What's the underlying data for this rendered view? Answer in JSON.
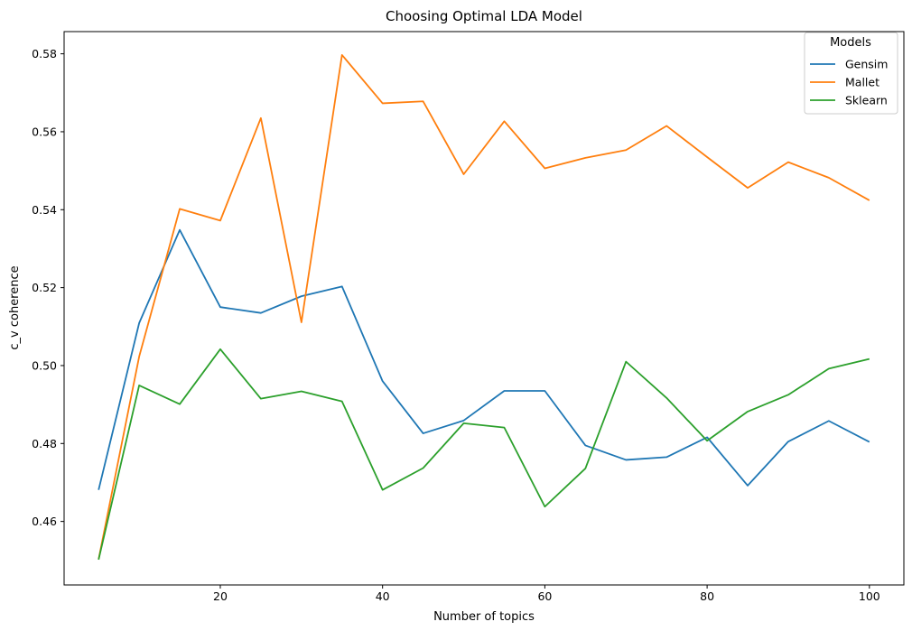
{
  "chart_data": {
    "type": "line",
    "title": "Choosing Optimal LDA Model",
    "xlabel": "Number of topics",
    "ylabel": "c_v coherence",
    "xlim": [
      0.75,
      104.25
    ],
    "ylim": [
      0.4437,
      0.5857
    ],
    "xticks": [
      20,
      40,
      60,
      80,
      100
    ],
    "xtick_labels": [
      "20",
      "40",
      "60",
      "80",
      "100"
    ],
    "yticks": [
      0.46,
      0.48,
      0.5,
      0.52,
      0.54,
      0.56,
      0.58
    ],
    "ytick_labels": [
      "0.46",
      "0.48",
      "0.50",
      "0.52",
      "0.54",
      "0.56",
      "0.58"
    ],
    "grid": false,
    "legend": {
      "title": "Models",
      "placement": "top-right"
    },
    "x": [
      5,
      10,
      15,
      20,
      25,
      30,
      35,
      40,
      45,
      50,
      55,
      60,
      65,
      70,
      75,
      80,
      85,
      90,
      95,
      100
    ],
    "series": [
      {
        "name": "Gensim",
        "color": "#1f77b4",
        "values": [
          0.4681,
          0.5109,
          0.5348,
          0.515,
          0.5135,
          0.5178,
          0.5203,
          0.496,
          0.4826,
          0.4859,
          0.4935,
          0.4935,
          0.4795,
          0.4758,
          0.4765,
          0.4816,
          0.4692,
          0.4805,
          0.4858,
          0.4804
        ]
      },
      {
        "name": "Mallet",
        "color": "#ff7f0e",
        "values": [
          0.4503,
          0.5023,
          0.5402,
          0.5372,
          0.5635,
          0.5111,
          0.5797,
          0.5673,
          0.5678,
          0.5491,
          0.5627,
          0.5506,
          0.5533,
          0.5553,
          0.5615,
          0.5535,
          0.5456,
          0.5522,
          0.5482,
          0.5424
        ]
      },
      {
        "name": "Sklearn",
        "color": "#2ca02c",
        "values": [
          0.4502,
          0.4949,
          0.4901,
          0.5042,
          0.4915,
          0.4934,
          0.4908,
          0.4681,
          0.4737,
          0.4852,
          0.4841,
          0.4638,
          0.4736,
          0.501,
          0.4917,
          0.4807,
          0.4882,
          0.4925,
          0.4992,
          0.5017
        ]
      }
    ]
  }
}
